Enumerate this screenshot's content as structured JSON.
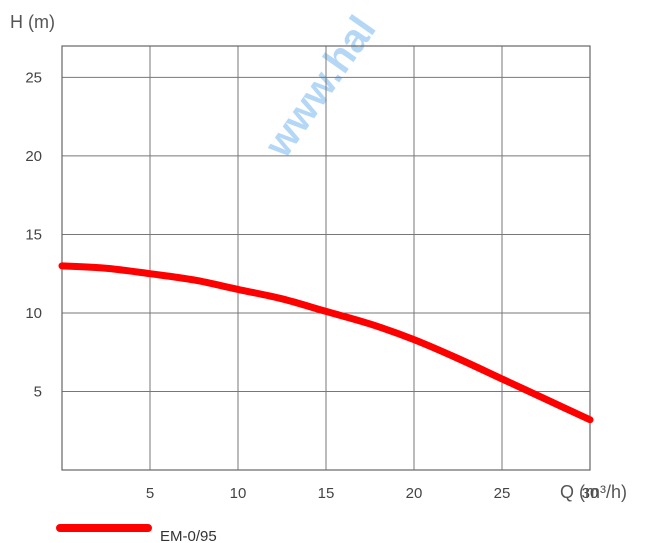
{
  "watermark": "www.hal",
  "chart_data": {
    "type": "line",
    "title": "",
    "xlabel": "Q (m³/h)",
    "ylabel": "H (m)",
    "xlim": [
      0,
      30
    ],
    "ylim": [
      0,
      27
    ],
    "x_ticks": [
      5,
      10,
      15,
      20,
      25,
      30
    ],
    "y_ticks": [
      5,
      10,
      15,
      20,
      25
    ],
    "x_tick_labels": [
      "5",
      "10",
      "15",
      "20",
      "25",
      "30"
    ],
    "y_tick_labels": [
      "5",
      "10",
      "15",
      "20",
      "25"
    ],
    "grid": true,
    "legend_position": "bottom-left",
    "series": [
      {
        "name": "EM-0/95",
        "color": "#ff0000",
        "x": [
          0,
          2.5,
          5,
          7.5,
          10,
          12.5,
          15,
          17.5,
          20,
          22.5,
          25,
          27.5,
          30
        ],
        "y": [
          13.0,
          12.85,
          12.5,
          12.1,
          11.5,
          10.9,
          10.1,
          9.3,
          8.3,
          7.1,
          5.8,
          4.5,
          3.2
        ]
      }
    ]
  }
}
